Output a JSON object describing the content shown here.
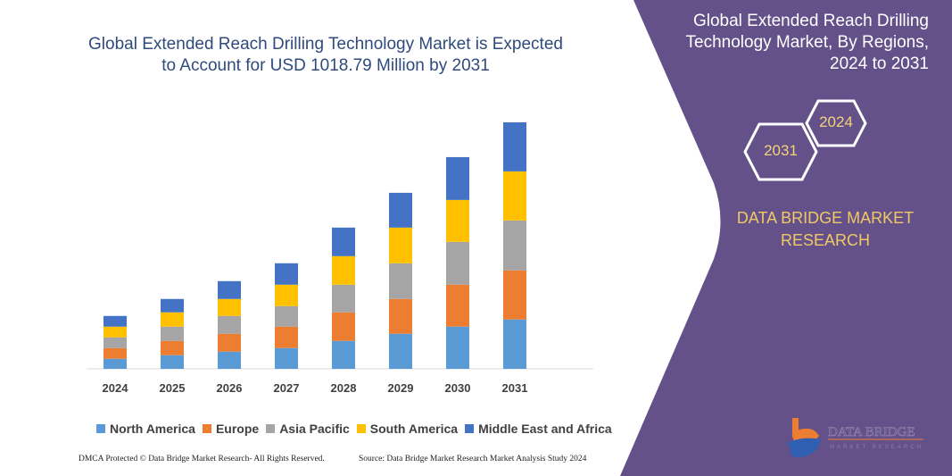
{
  "title": "Global Extended Reach Drilling Technology Market is Expected to Account for USD 1018.79 Million by 2031",
  "side_panel": {
    "title": "Global Extended Reach Drilling Technology Market, By Regions, 2024 to 2031",
    "hex_year_1": "2024",
    "hex_year_2": "2031",
    "brand": "DATA BRIDGE MARKET RESEARCH",
    "logo_text": "DATA BRIDGE",
    "logo_subtext": "MARKET RESEARCH",
    "panel_color": "#65518a"
  },
  "footer": {
    "left": "DMCA Protected © Data Bridge Market Research- All Rights Reserved.",
    "right": "Source: Data Bridge Market Research Market Analysis Study 2024"
  },
  "chart_data": {
    "type": "bar",
    "stacked": true,
    "title": "Global Extended Reach Drilling Technology Market is Expected to Account for USD 1018.79 Million by 2031",
    "xlabel": "",
    "ylabel": "",
    "grid": false,
    "legend_position": "bottom",
    "ylim": [
      0,
      1018.79
    ],
    "categories": [
      "2024",
      "2025",
      "2026",
      "2027",
      "2028",
      "2029",
      "2030",
      "2031"
    ],
    "series": [
      {
        "name": "North America",
        "color": "#5b9bd5",
        "values": [
          41.8,
          56.5,
          71.3,
          86.0,
          115.5,
          145.0,
          174.5,
          204.0
        ]
      },
      {
        "name": "Europe",
        "color": "#ed7d31",
        "values": [
          44.2,
          59.0,
          73.7,
          88.5,
          118.0,
          143.8,
          173.3,
          202.8
        ]
      },
      {
        "name": "Asia Pacific",
        "color": "#a5a5a5",
        "values": [
          44.2,
          59.0,
          73.7,
          84.8,
          114.3,
          147.5,
          177.0,
          206.5
        ]
      },
      {
        "name": "South America",
        "color": "#ffc000",
        "values": [
          44.2,
          59.0,
          70.1,
          88.5,
          118.0,
          147.5,
          173.3,
          202.8
        ]
      },
      {
        "name": "Middle East and Africa",
        "color": "#4472c4",
        "values": [
          44.2,
          55.3,
          73.7,
          88.5,
          118.0,
          143.8,
          177.0,
          202.8
        ]
      }
    ]
  }
}
